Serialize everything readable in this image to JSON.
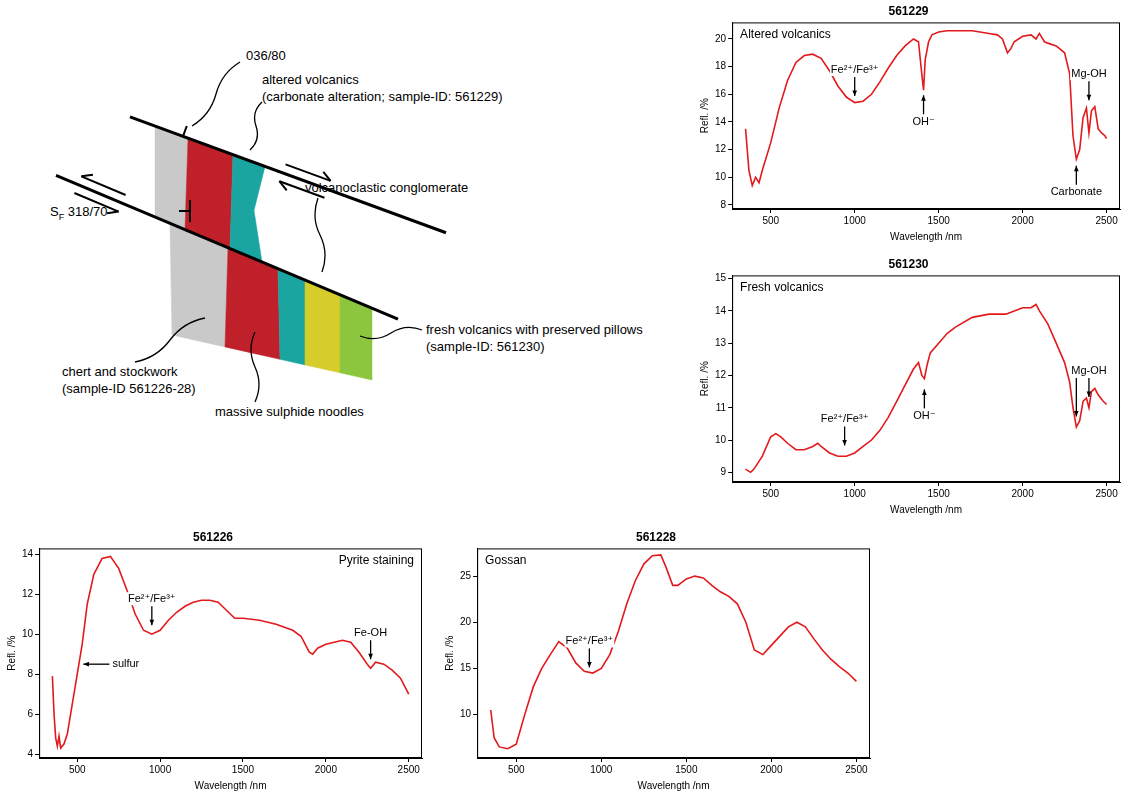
{
  "diagram": {
    "structure_upper": "036/80",
    "structure_lower": {
      "symbol": "S",
      "subscript": "F",
      "text": "318/70"
    },
    "units": [
      {
        "lines": [
          "altered volcanics",
          "(carbonate alteration; sample-ID: 561229)"
        ]
      },
      {
        "lines": [
          "volcanoclastic conglomerate"
        ]
      },
      {
        "lines": [
          "fresh volcanics with preserved pillows",
          "(sample-ID: 561230)"
        ]
      },
      {
        "lines": [
          "chert and stockwork",
          "(sample-ID 561226-28)"
        ]
      },
      {
        "lines": [
          "massive sulphide noodles"
        ]
      }
    ]
  },
  "chart_data": [
    {
      "type": "line",
      "title": "561229",
      "subtitle": "Altered volcanics",
      "xlabel": "Wavelength /nm",
      "ylabel": "Refl. /%",
      "color": "#e3191c",
      "grid": false,
      "xlim": [
        270,
        2580
      ],
      "xticks": [
        500,
        1000,
        1500,
        2000,
        2500
      ],
      "ylim": [
        7.7,
        21.2
      ],
      "yticks": [
        8,
        10,
        12,
        14,
        16,
        18,
        20
      ],
      "x": [
        350,
        370,
        390,
        410,
        430,
        450,
        500,
        550,
        600,
        650,
        700,
        750,
        800,
        850,
        900,
        950,
        1000,
        1050,
        1100,
        1150,
        1200,
        1250,
        1300,
        1350,
        1380,
        1395,
        1410,
        1420,
        1440,
        1460,
        1500,
        1550,
        1600,
        1700,
        1800,
        1850,
        1880,
        1910,
        1930,
        1950,
        2000,
        2050,
        2080,
        2100,
        2130,
        2150,
        2200,
        2250,
        2280,
        2300,
        2320,
        2340,
        2360,
        2380,
        2395,
        2410,
        2430,
        2450,
        2470,
        2490,
        2500
      ],
      "values": [
        13.5,
        10.5,
        9.4,
        10.0,
        9.6,
        10.5,
        12.5,
        15.0,
        17.0,
        18.3,
        18.8,
        18.9,
        18.6,
        17.7,
        16.6,
        15.8,
        15.4,
        15.5,
        16.0,
        16.9,
        17.9,
        18.8,
        19.5,
        20.0,
        19.8,
        18.0,
        16.3,
        18.5,
        19.8,
        20.3,
        20.5,
        20.6,
        20.6,
        20.6,
        20.4,
        20.3,
        20.0,
        19.0,
        19.3,
        19.8,
        20.2,
        20.3,
        20.0,
        20.4,
        19.8,
        19.7,
        19.5,
        19.0,
        17.5,
        13.0,
        11.3,
        12.0,
        14.3,
        15.0,
        13.2,
        14.8,
        15.1,
        13.5,
        13.2,
        13.0,
        12.8
      ],
      "annotations": [
        {
          "text": "Fe²⁺/Fe³⁺",
          "x": 1000,
          "y": 15.8,
          "position": "above"
        },
        {
          "text": "OH⁻",
          "x": 1410,
          "y": 16.0,
          "position": "below"
        },
        {
          "text": "Mg-OH",
          "x": 2395,
          "y": 15.5,
          "position": "above"
        },
        {
          "text": "Carbonate",
          "x": 2320,
          "y": 10.9,
          "position": "below"
        }
      ]
    },
    {
      "type": "line",
      "title": "561230",
      "subtitle": "Fresh volcanics",
      "xlabel": "Wavelength /nm",
      "ylabel": "Refl. /%",
      "color": "#e3191c",
      "grid": false,
      "xlim": [
        270,
        2580
      ],
      "xticks": [
        500,
        1000,
        1500,
        2000,
        2500
      ],
      "ylim": [
        8.7,
        15.1
      ],
      "yticks": [
        9,
        10,
        11,
        12,
        13,
        14,
        15
      ],
      "x": [
        350,
        380,
        400,
        450,
        500,
        530,
        560,
        600,
        650,
        700,
        750,
        780,
        800,
        850,
        900,
        950,
        1000,
        1050,
        1100,
        1150,
        1200,
        1250,
        1300,
        1350,
        1380,
        1400,
        1415,
        1430,
        1450,
        1500,
        1550,
        1600,
        1700,
        1800,
        1900,
        1950,
        2000,
        2050,
        2080,
        2100,
        2150,
        2200,
        2250,
        2280,
        2300,
        2320,
        2340,
        2360,
        2380,
        2395,
        2410,
        2430,
        2450,
        2480,
        2500
      ],
      "values": [
        9.1,
        9.0,
        9.1,
        9.5,
        10.1,
        10.2,
        10.1,
        9.9,
        9.7,
        9.7,
        9.8,
        9.9,
        9.8,
        9.6,
        9.5,
        9.5,
        9.6,
        9.8,
        10.0,
        10.3,
        10.7,
        11.2,
        11.7,
        12.2,
        12.4,
        12.0,
        11.9,
        12.3,
        12.7,
        13.0,
        13.3,
        13.5,
        13.8,
        13.9,
        13.9,
        14.0,
        14.1,
        14.1,
        14.2,
        14.0,
        13.6,
        13.0,
        12.4,
        11.8,
        11.0,
        10.4,
        10.6,
        11.2,
        11.3,
        11.0,
        11.5,
        11.6,
        11.4,
        11.2,
        11.1
      ],
      "annotations": [
        {
          "text": "Fe²⁺/Fe³⁺",
          "x": 940,
          "y": 9.8,
          "position": "above"
        },
        {
          "text": "OH⁻",
          "x": 1415,
          "y": 11.6,
          "position": "below"
        },
        {
          "text": "Mg-OH",
          "x": [
            2320,
            2395
          ],
          "y": [
            10.7,
            11.3
          ],
          "position": "above"
        }
      ]
    },
    {
      "type": "line",
      "title": "561226",
      "subtitle": "Pyrite staining",
      "xlabel": "Wavelength /nm",
      "ylabel": "Refl. /%",
      "color": "#e3191c",
      "grid": false,
      "xlim": [
        270,
        2580
      ],
      "xticks": [
        500,
        1000,
        1500,
        2000,
        2500
      ],
      "ylim": [
        3.8,
        14.3
      ],
      "yticks": [
        4,
        6,
        8,
        10,
        12,
        14
      ],
      "x": [
        350,
        360,
        370,
        380,
        390,
        400,
        420,
        440,
        460,
        500,
        530,
        560,
        600,
        650,
        700,
        750,
        800,
        850,
        900,
        950,
        1000,
        1050,
        1100,
        1150,
        1200,
        1250,
        1300,
        1350,
        1400,
        1450,
        1500,
        1600,
        1700,
        1800,
        1850,
        1900,
        1920,
        1950,
        2000,
        2050,
        2100,
        2150,
        2200,
        2250,
        2270,
        2300,
        2350,
        2400,
        2450,
        2500
      ],
      "values": [
        7.9,
        6.0,
        4.8,
        4.4,
        4.9,
        4.3,
        4.5,
        5.0,
        6.0,
        8.0,
        9.5,
        11.5,
        13.0,
        13.8,
        13.9,
        13.3,
        12.2,
        11.0,
        10.2,
        10.0,
        10.2,
        10.7,
        11.1,
        11.4,
        11.6,
        11.7,
        11.7,
        11.6,
        11.2,
        10.8,
        10.8,
        10.7,
        10.5,
        10.2,
        9.9,
        9.1,
        9.0,
        9.3,
        9.5,
        9.6,
        9.7,
        9.6,
        9.1,
        8.5,
        8.3,
        8.6,
        8.5,
        8.2,
        7.8,
        7.0
      ],
      "annotations": [
        {
          "text": "sulfur",
          "x": 525,
          "y": 8.5,
          "position": "right"
        },
        {
          "text": "Fe²⁺/Fe³⁺",
          "x": 950,
          "y": 10.4,
          "position": "above"
        },
        {
          "text": "Fe-OH",
          "x": 2270,
          "y": 8.7,
          "position": "above"
        }
      ]
    },
    {
      "type": "line",
      "title": "561228",
      "subtitle": "Gossan",
      "xlabel": "Wavelength /nm",
      "ylabel": "Refl. /%",
      "color": "#e3191c",
      "grid": false,
      "xlim": [
        270,
        2580
      ],
      "xticks": [
        500,
        1000,
        1500,
        2000,
        2500
      ],
      "ylim": [
        5.3,
        28.0
      ],
      "yticks": [
        10,
        15,
        20,
        25
      ],
      "x": [
        350,
        370,
        400,
        450,
        500,
        550,
        600,
        650,
        700,
        750,
        800,
        850,
        900,
        950,
        1000,
        1050,
        1100,
        1150,
        1200,
        1250,
        1300,
        1350,
        1380,
        1420,
        1450,
        1500,
        1550,
        1600,
        1650,
        1700,
        1750,
        1800,
        1850,
        1900,
        1950,
        2000,
        2050,
        2100,
        2150,
        2200,
        2250,
        2300,
        2350,
        2400,
        2450,
        2500
      ],
      "values": [
        10.5,
        7.5,
        6.5,
        6.3,
        6.8,
        10.0,
        13.0,
        15.0,
        16.5,
        17.9,
        17.2,
        15.6,
        14.7,
        14.5,
        15.0,
        16.5,
        19.0,
        22.0,
        24.5,
        26.3,
        27.2,
        27.3,
        26.0,
        24.0,
        24.0,
        24.7,
        25.0,
        24.8,
        24.0,
        23.3,
        22.8,
        22.0,
        20.0,
        17.0,
        16.5,
        17.5,
        18.5,
        19.5,
        20.0,
        19.5,
        18.2,
        17.0,
        16.0,
        15.2,
        14.5,
        13.6
      ],
      "annotations": [
        {
          "text": "Fe²⁺/Fe³⁺",
          "x": 930,
          "y": 15.0,
          "position": "above"
        }
      ]
    }
  ]
}
